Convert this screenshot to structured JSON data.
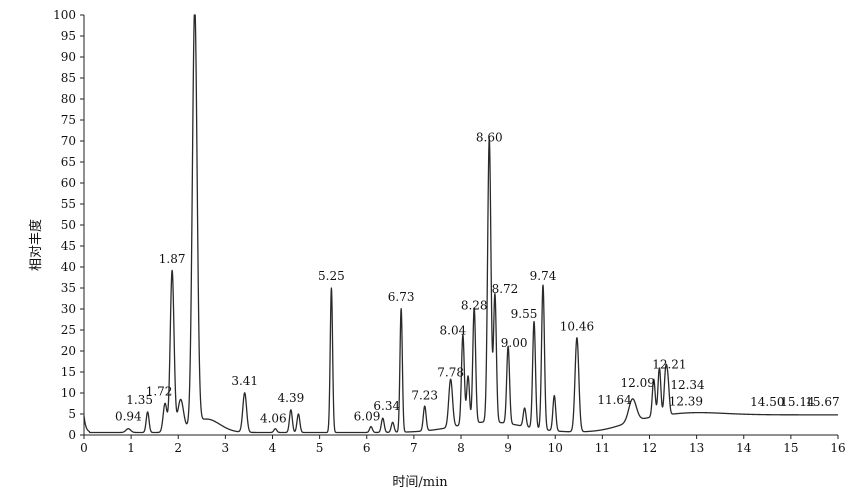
{
  "chart_data": {
    "type": "line",
    "title": "",
    "xlabel": "时间/min",
    "ylabel": "相对丰度",
    "xlim": [
      0,
      16
    ],
    "ylim": [
      0,
      100
    ],
    "x_ticks": [
      "0",
      "1",
      "2",
      "3",
      "4",
      "5",
      "6",
      "7",
      "8",
      "9",
      "10",
      "11",
      "12",
      "13",
      "14",
      "15",
      "16"
    ],
    "y_ticks": [
      "0",
      "5",
      "10",
      "15",
      "20",
      "25",
      "30",
      "35",
      "40",
      "45",
      "50",
      "55",
      "60",
      "65",
      "70",
      "75",
      "80",
      "85",
      "90",
      "95",
      "100"
    ],
    "grid": false,
    "baseline": 0.6,
    "peaks": [
      {
        "label": "0.94",
        "x": 0.94,
        "y": 1.5,
        "w": 0.05
      },
      {
        "label": "1.35",
        "x": 1.35,
        "y": 5.5,
        "w": 0.03
      },
      {
        "label": "1.72",
        "x": 1.72,
        "y": 7.5,
        "w": 0.04
      },
      {
        "label": "1.87",
        "x": 1.87,
        "y": 39.0,
        "w": 0.04
      },
      {
        "label": "",
        "x": 2.05,
        "y": 8.0,
        "w": 0.06
      },
      {
        "label": "",
        "x": 2.35,
        "y": 100.0,
        "w": 0.05
      },
      {
        "label": "3.41",
        "x": 3.41,
        "y": 10.0,
        "w": 0.04
      },
      {
        "label": "4.06",
        "x": 4.06,
        "y": 1.5,
        "w": 0.03
      },
      {
        "label": "4.39",
        "x": 4.39,
        "y": 6.0,
        "w": 0.03
      },
      {
        "label": "",
        "x": 4.55,
        "y": 5.0,
        "w": 0.03
      },
      {
        "label": "5.25",
        "x": 5.25,
        "y": 35.0,
        "w": 0.025
      },
      {
        "label": "6.09",
        "x": 6.09,
        "y": 2.0,
        "w": 0.03
      },
      {
        "label": "6.34",
        "x": 6.34,
        "y": 4.0,
        "w": 0.03
      },
      {
        "label": "",
        "x": 6.55,
        "y": 3.0,
        "w": 0.03
      },
      {
        "label": "6.73",
        "x": 6.73,
        "y": 30.0,
        "w": 0.025
      },
      {
        "label": "7.23",
        "x": 7.23,
        "y": 6.5,
        "w": 0.03
      },
      {
        "label": "7.78",
        "x": 7.78,
        "y": 12.0,
        "w": 0.04
      },
      {
        "label": "8.04",
        "x": 8.04,
        "y": 22.0,
        "w": 0.03
      },
      {
        "label": "",
        "x": 8.15,
        "y": 12.0,
        "w": 0.03
      },
      {
        "label": "8.28",
        "x": 8.28,
        "y": 28.0,
        "w": 0.03
      },
      {
        "label": "8.60",
        "x": 8.6,
        "y": 68.0,
        "w": 0.035
      },
      {
        "label": "8.72",
        "x": 8.72,
        "y": 31.0,
        "w": 0.03
      },
      {
        "label": "9.00",
        "x": 9.0,
        "y": 19.0,
        "w": 0.03
      },
      {
        "label": "",
        "x": 9.35,
        "y": 5.0,
        "w": 0.03
      },
      {
        "label": "9.55",
        "x": 9.55,
        "y": 26.0,
        "w": 0.03
      },
      {
        "label": "9.74",
        "x": 9.74,
        "y": 35.0,
        "w": 0.03
      },
      {
        "label": "",
        "x": 9.98,
        "y": 9.0,
        "w": 0.03
      },
      {
        "label": "10.46",
        "x": 10.46,
        "y": 23.0,
        "w": 0.04
      },
      {
        "label": "11.64",
        "x": 11.64,
        "y": 6.0,
        "w": 0.08
      },
      {
        "label": "12.09",
        "x": 12.09,
        "y": 9.5,
        "w": 0.03
      },
      {
        "label": "12.21",
        "x": 12.21,
        "y": 12.0,
        "w": 0.03
      },
      {
        "label": "12.34",
        "x": 12.34,
        "y": 10.0,
        "w": 0.03
      },
      {
        "label": "12.39",
        "x": 12.39,
        "y": 8.0,
        "w": 0.03
      },
      {
        "label": "14.50",
        "x": 14.5,
        "y": 5.0,
        "w": 0.3
      },
      {
        "label": "15.14",
        "x": 15.14,
        "y": 5.0,
        "w": 0.3
      },
      {
        "label": "15.67",
        "x": 15.67,
        "y": 5.0,
        "w": 0.3
      }
    ]
  }
}
